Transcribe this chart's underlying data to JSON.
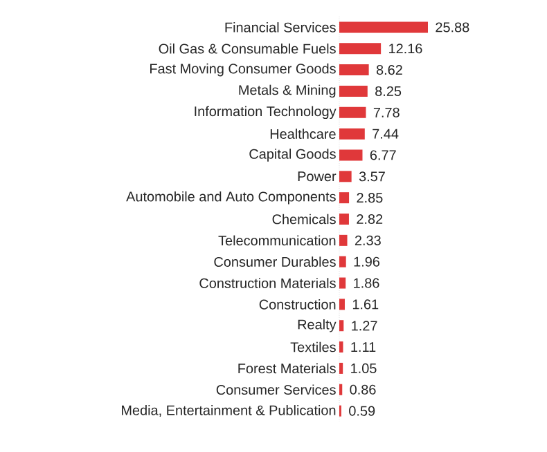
{
  "chart_data": {
    "type": "bar",
    "orientation": "horizontal",
    "data_labels": true,
    "color": "#e0383a",
    "categories": [
      "Financial Services",
      "Oil Gas & Consumable Fuels",
      "Fast Moving Consumer Goods",
      "Metals & Mining",
      "Information Technology",
      "Healthcare",
      "Capital Goods",
      "Power",
      "Automobile and Auto Components",
      "Chemicals",
      "Telecommunication",
      "Consumer Durables",
      "Construction Materials",
      "Construction",
      "Realty",
      "Textiles",
      "Forest Materials",
      "Consumer Services",
      "Media, Entertainment & Publication"
    ],
    "values": [
      25.88,
      12.16,
      8.62,
      8.25,
      7.78,
      7.44,
      6.77,
      3.57,
      2.85,
      2.82,
      2.33,
      1.96,
      1.86,
      1.61,
      1.27,
      1.11,
      1.05,
      0.86,
      0.59
    ]
  }
}
